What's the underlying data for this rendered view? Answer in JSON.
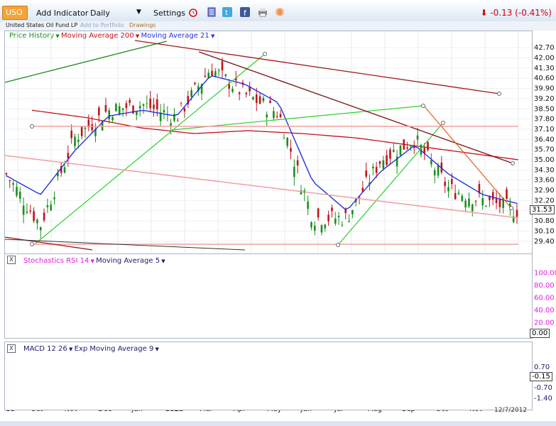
{
  "toolbar": {
    "ticker": "USO",
    "add_indicator": "Add Indicator",
    "period": "Daily",
    "settings": "Settings",
    "change": "-0.13 (-0.41%)",
    "icons": [
      "alarm-clock-icon",
      "document-icon",
      "twitter-icon",
      "facebook-icon",
      "print-icon",
      "hand-icon"
    ]
  },
  "subbar": {
    "name": "United States Oil Fund LP",
    "add_portfolio": "Add to Portfolio",
    "drawings": "Drawings"
  },
  "price_panel": {
    "legend": {
      "price": "Price History",
      "ma200": "Moving Average 200",
      "ma21": "Moving Average 21"
    },
    "last_price": "31.53",
    "colors": {
      "price_up": "#1a8f1a",
      "price_down": "#c0141c",
      "ma21": "#2233dd",
      "ma200": "#c0141c"
    }
  },
  "stoch_panel": {
    "legend": {
      "stoch": "Stochastics RSI 14",
      "ma": "Moving Average 5"
    },
    "last_value": "0.00"
  },
  "macd_panel": {
    "legend": {
      "macd": "MACD 12 26",
      "ema": "Exp Moving Average 9"
    },
    "last_value": "-0.15"
  },
  "footer": {
    "date": "12/7/2012"
  },
  "chart_data": [
    {
      "type": "candlestick",
      "title": "",
      "xlabel": "",
      "ylabel": "",
      "x_ticks": [
        "11",
        "Oct",
        "Nov",
        "Dec",
        "Jan",
        "2012",
        "Feb",
        "Mar",
        "Apr",
        "May",
        "Jun",
        "Jul",
        "Aug",
        "Sep",
        "Oct",
        "Nov"
      ],
      "yticks": [
        42.7,
        42.0,
        41.3,
        40.6,
        39.9,
        39.2,
        38.5,
        37.8,
        37.1,
        36.4,
        35.7,
        35.0,
        34.3,
        33.6,
        32.9,
        32.2,
        31.5,
        30.8,
        30.1,
        29.4
      ],
      "ylim": [
        28.9,
        43.1
      ],
      "series": [
        {
          "name": "Price History",
          "x": [
            "Sep 2011",
            "Oct 2011",
            "Nov 2011",
            "Dec 2011",
            "Jan 2012",
            "Feb 2012",
            "Mar 2012",
            "Apr 2012",
            "May 2012",
            "Jun 2012",
            "Jul 2012",
            "Aug 2012",
            "Sep 2012",
            "Oct 2012",
            "Nov 2012",
            "Dec 2012"
          ],
          "values": [
            34.0,
            30.5,
            36.5,
            38.4,
            38.8,
            37.9,
            41.3,
            39.5,
            38.2,
            31.0,
            31.0,
            35.0,
            36.4,
            33.0,
            32.2,
            31.53
          ]
        },
        {
          "name": "Moving Average 21",
          "x": [
            "Sep 2011",
            "Oct 2011",
            "Nov 2011",
            "Dec 2011",
            "Jan 2012",
            "Feb 2012",
            "Mar 2012",
            "Apr 2012",
            "May 2012",
            "Jun 2012",
            "Jul 2012",
            "Aug 2012",
            "Sep 2012",
            "Oct 2012",
            "Nov 2012",
            "Dec 2012"
          ],
          "values": [
            33.9,
            32.6,
            35.6,
            38.0,
            38.4,
            38.0,
            40.8,
            40.2,
            38.9,
            33.5,
            31.5,
            34.2,
            36.0,
            34.0,
            32.6,
            32.0
          ]
        },
        {
          "name": "Moving Average 200",
          "x": [
            "Sep 2011",
            "Nov 2011",
            "Jan 2012",
            "Mar 2012",
            "May 2012",
            "Jul 2012",
            "Sep 2012",
            "Oct 2012",
            "Nov 2012",
            "Dec 2012"
          ],
          "values": [
            38.4,
            37.9,
            37.2,
            36.8,
            37.0,
            36.8,
            36.5,
            36.0,
            35.5,
            35.0
          ]
        }
      ]
    },
    {
      "type": "line",
      "title": "",
      "yticks": [
        100.0,
        80.0,
        60.0,
        40.0,
        20.0
      ],
      "ylim": [
        0,
        105
      ],
      "series": [
        {
          "name": "Stochastics RSI 14",
          "values": [
            85,
            40,
            5,
            60,
            95,
            100,
            30,
            10,
            70,
            95,
            60,
            20,
            5,
            60,
            100,
            90,
            50,
            10,
            80,
            100,
            100,
            40,
            5,
            0,
            60,
            100,
            80,
            30,
            5,
            50,
            100,
            90,
            40,
            0,
            0,
            70,
            100,
            90,
            30,
            5,
            60,
            100,
            100,
            60,
            20,
            5,
            50,
            100,
            90,
            40,
            5,
            0,
            60,
            100,
            90,
            40,
            0
          ]
        },
        {
          "name": "Moving Average 5",
          "values": [
            80,
            50,
            15,
            50,
            85,
            90,
            45,
            20,
            55,
            85,
            70,
            30,
            10,
            50,
            90,
            90,
            55,
            20,
            65,
            95,
            95,
            55,
            15,
            5,
            50,
            90,
            85,
            45,
            15,
            45,
            90,
            90,
            50,
            10,
            5,
            55,
            90,
            90,
            45,
            15,
            50,
            90,
            95,
            70,
            35,
            15,
            45,
            90,
            90,
            55,
            15,
            5,
            50,
            90,
            88,
            70,
            50
          ]
        }
      ]
    },
    {
      "type": "line",
      "title": "",
      "yticks": [
        0.7,
        -0.7,
        -1.4
      ],
      "ylim": [
        -1.6,
        1.5
      ],
      "series": [
        {
          "name": "MACD 12 26",
          "values": [
            -0.2,
            -0.7,
            -0.3,
            0.5,
            1.1,
            1.3,
            0.9,
            0.5,
            0.4,
            0.3,
            0.6,
            1.0,
            0.7,
            0.1,
            -0.1,
            0.2,
            0.5,
            -0.2,
            -1.0,
            -1.3,
            -1.1,
            -0.6,
            0.3,
            0.8,
            1.0,
            0.9,
            0.6,
            0.3,
            0.0,
            -0.2,
            -0.3,
            -0.4,
            -0.2,
            -0.1,
            0.0
          ]
        },
        {
          "name": "Exp Moving Average 9",
          "values": [
            -0.1,
            -0.5,
            -0.4,
            0.3,
            0.9,
            1.2,
            1.0,
            0.6,
            0.4,
            0.3,
            0.5,
            0.9,
            0.8,
            0.3,
            0.0,
            0.1,
            0.4,
            0.0,
            -0.7,
            -1.2,
            -1.2,
            -0.8,
            0.0,
            0.6,
            0.9,
            0.9,
            0.7,
            0.4,
            0.1,
            -0.1,
            -0.3,
            -0.3,
            -0.3,
            -0.2,
            -0.05
          ]
        }
      ]
    }
  ]
}
